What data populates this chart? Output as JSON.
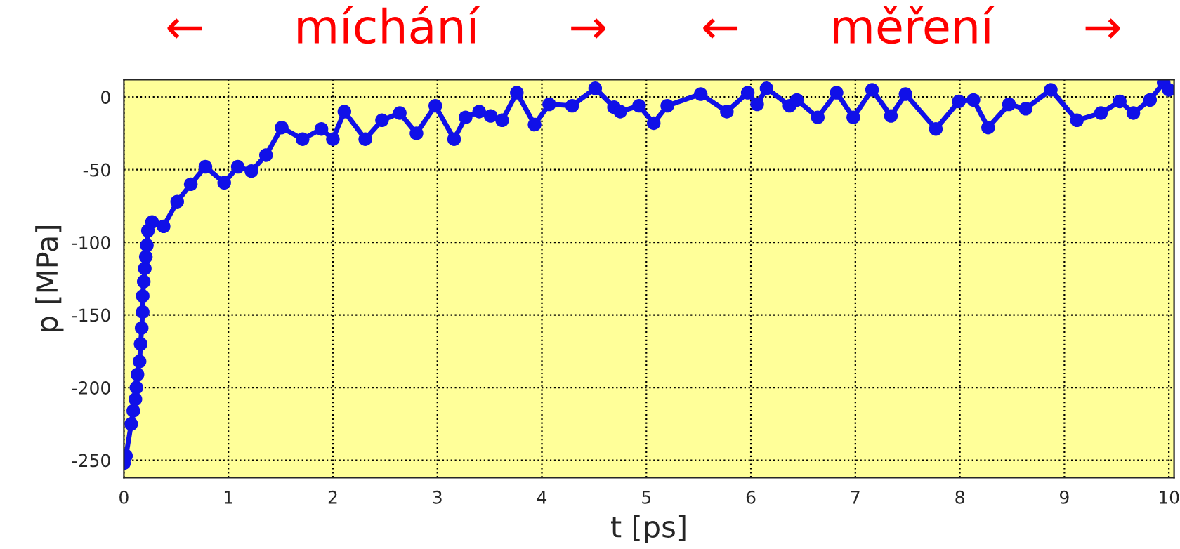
{
  "chart_data": {
    "type": "line",
    "xlabel": "t [ps]",
    "ylabel": "p [MPa]",
    "annotations": [
      "←      míchání      →",
      "←      měření      →"
    ],
    "xlim": [
      0,
      10.05
    ],
    "xticks": [
      0,
      1,
      2,
      3,
      4,
      5,
      6,
      7,
      8,
      9,
      10
    ],
    "ylim": [
      -262,
      12
    ],
    "yticks": [
      -250,
      -200,
      -150,
      -100,
      -50,
      0
    ],
    "grid": true,
    "marker": "circle",
    "line_style": "solid",
    "series": [
      {
        "color": "#1010e8",
        "x": [
          0,
          0.02,
          0.07,
          0.09,
          0.11,
          0.12,
          0.13,
          0.15,
          0.16,
          0.17,
          0.18,
          0.18,
          0.19,
          0.2,
          0.21,
          0.22,
          0.23,
          0.27,
          0.38,
          0.51,
          0.64,
          0.78,
          0.96,
          1.09,
          1.22,
          1.36,
          1.51,
          1.71,
          1.89,
          2.0,
          2.11,
          2.31,
          2.47,
          2.64,
          2.8,
          2.98,
          3.16,
          3.27,
          3.4,
          3.51,
          3.62,
          3.76,
          3.93,
          4.07,
          4.29,
          4.51,
          4.69,
          4.75,
          4.93,
          5.07,
          5.2,
          5.52,
          5.77,
          5.97,
          6.06,
          6.15,
          6.37,
          6.44,
          6.64,
          6.82,
          6.98,
          7.16,
          7.34,
          7.48,
          7.77,
          7.99,
          8.13,
          8.27,
          8.47,
          8.63,
          8.87,
          9.12,
          9.35,
          9.53,
          9.66,
          9.82,
          9.95,
          10.0
        ],
        "values": [
          -252,
          -247,
          -225,
          -216,
          -208,
          -200,
          -191,
          -182,
          -170,
          -159,
          -148,
          -137,
          -127,
          -118,
          -110,
          -102,
          -92,
          -86,
          -89,
          -72,
          -60,
          -48,
          -59,
          -48,
          -51,
          -40,
          -21,
          -29,
          -22,
          -29,
          -10,
          -29,
          -16,
          -11,
          -25,
          -6,
          -29,
          -14,
          -10,
          -13,
          -16,
          3,
          -19,
          -5,
          -6,
          6,
          -7,
          -10,
          -6,
          -18,
          -6,
          2,
          -10,
          3,
          -5,
          6,
          -6,
          -2,
          -14,
          3,
          -14,
          5,
          -13,
          2,
          -22,
          -3,
          -2,
          -21,
          -5,
          -8,
          5,
          -16,
          -11,
          -3,
          -11,
          -2,
          10,
          5
        ]
      }
    ]
  }
}
